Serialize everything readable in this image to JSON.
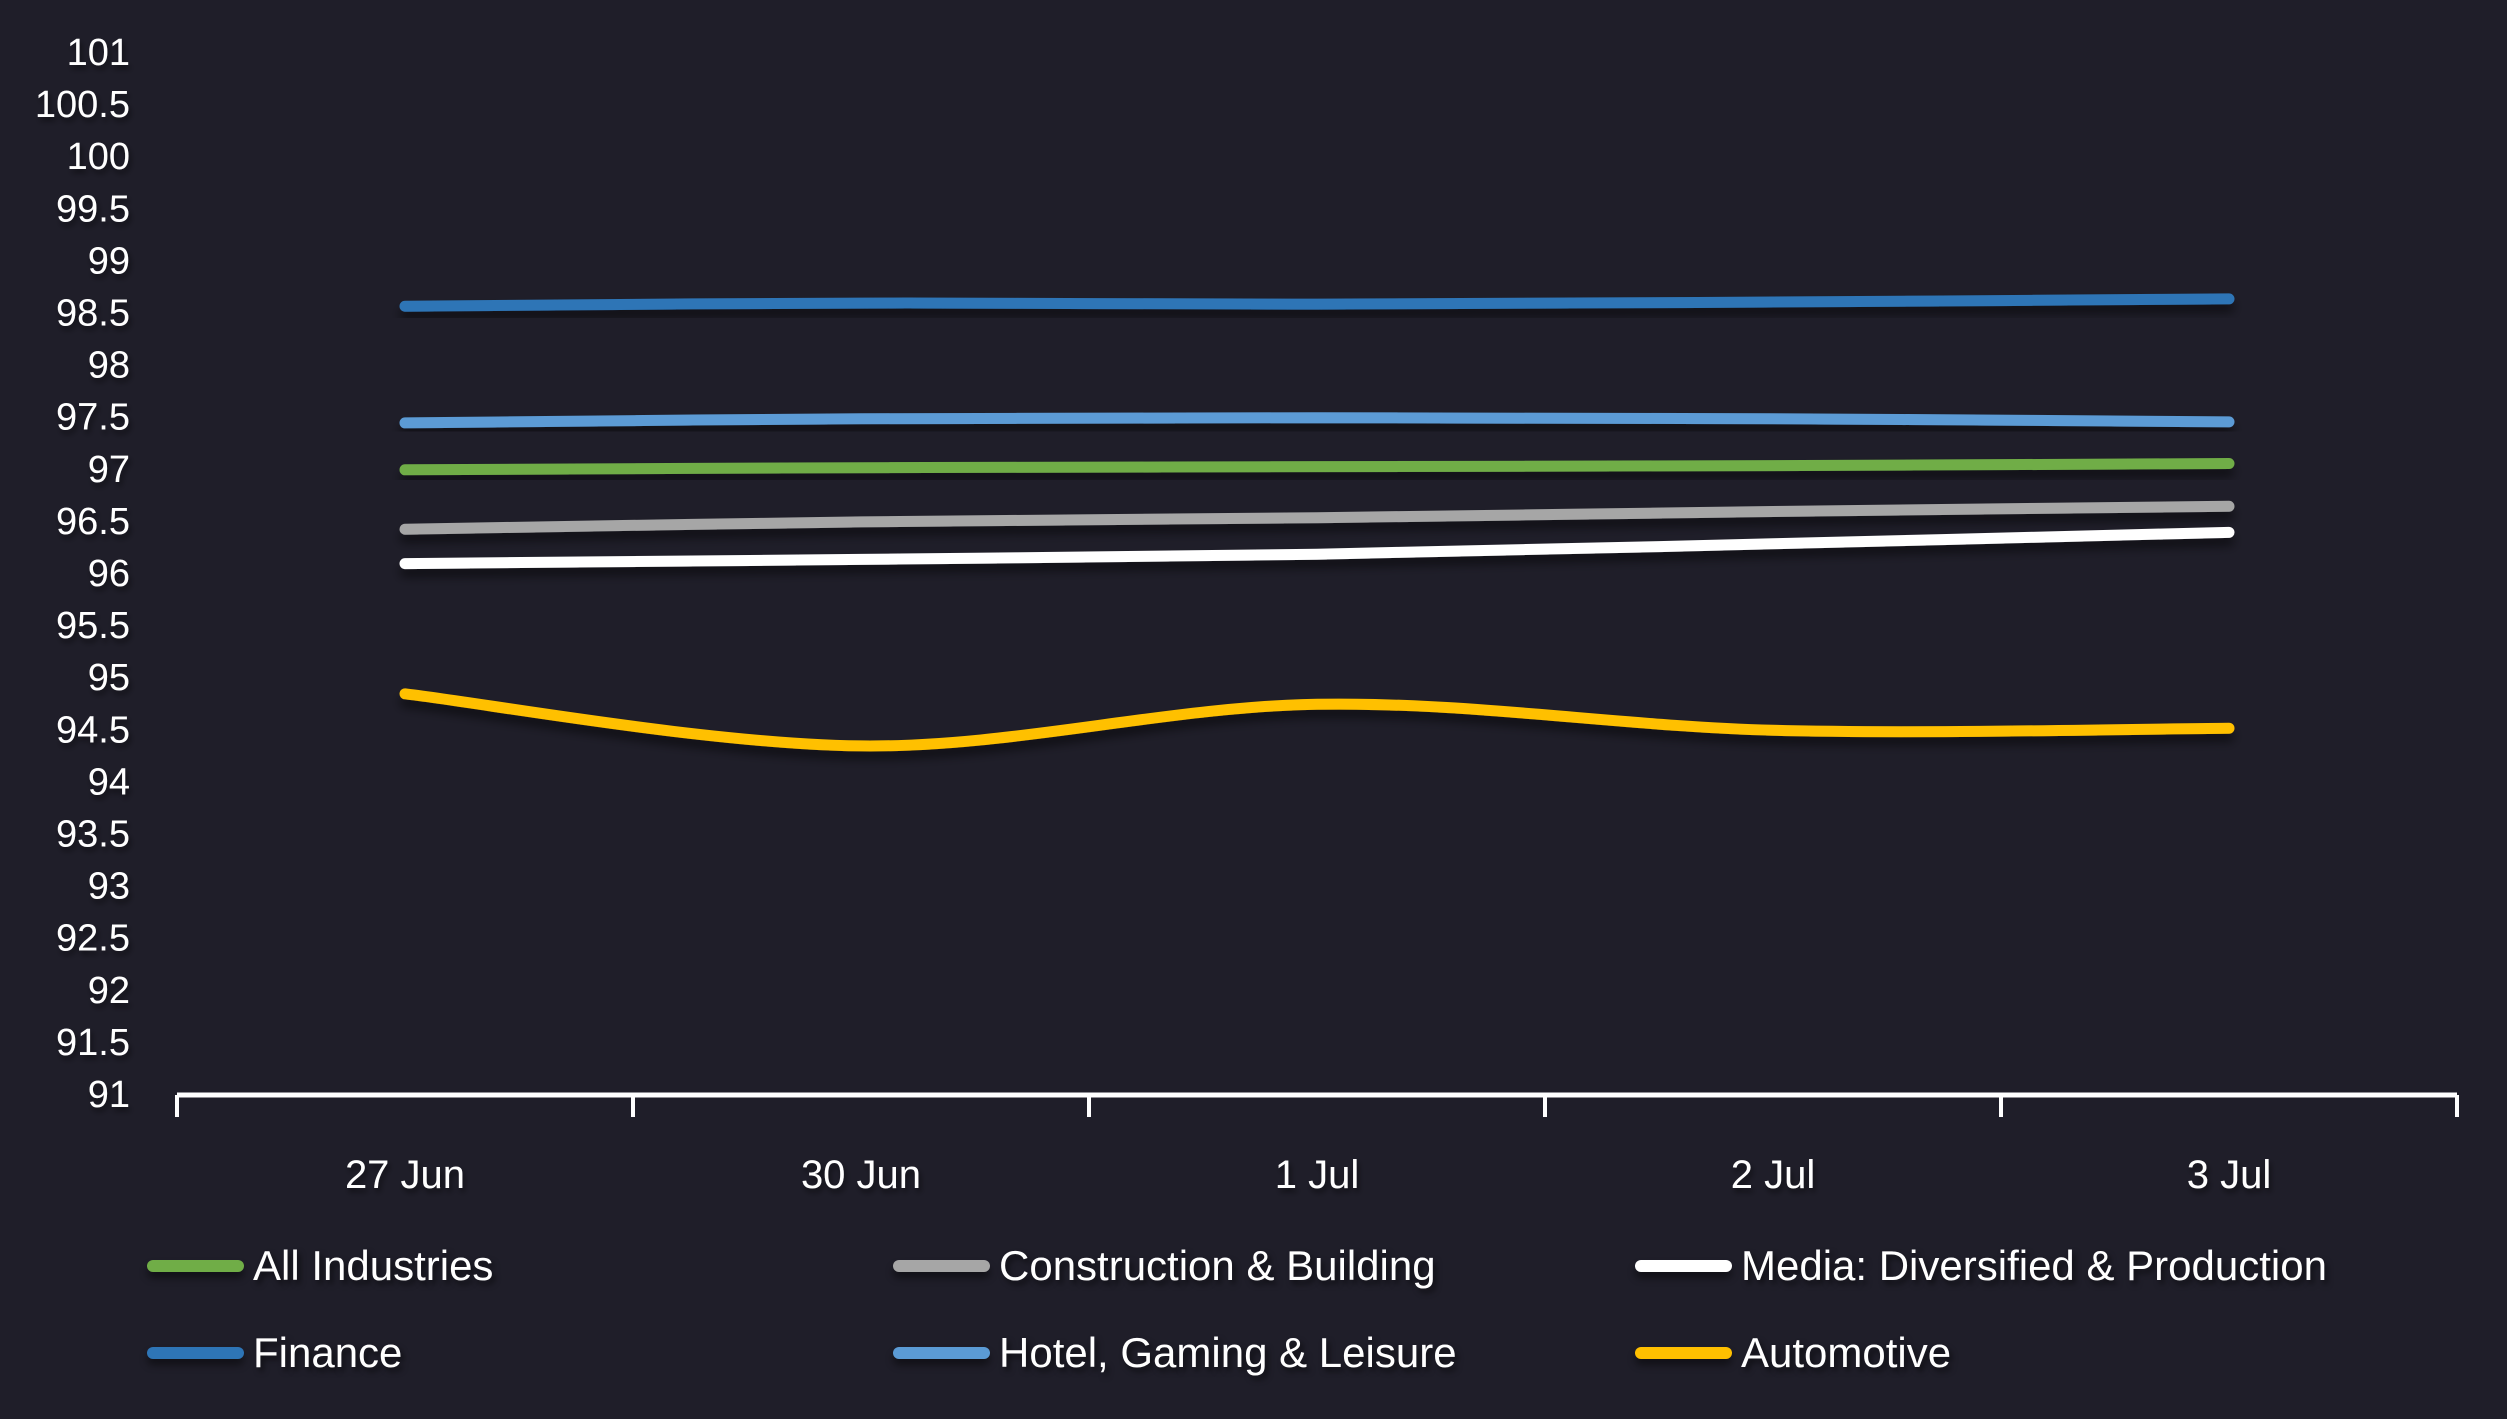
{
  "colors": {
    "background": "#1f1e29",
    "gridline": "#343340",
    "axis": "#ffffff",
    "label": "#ffffff"
  },
  "chart_data": {
    "type": "line",
    "title": "",
    "xlabel": "",
    "ylabel": "",
    "x_labels": [
      "27 Jun",
      "30 Jun",
      "1 Jul",
      "2 Jul",
      "3 Jul"
    ],
    "y_tick_labels": [
      "101",
      "100.5",
      "100",
      "99.5",
      "99",
      "98.5",
      "98",
      "97.5",
      "97",
      "96.5",
      "96",
      "95.5",
      "95",
      "94.5",
      "94",
      "93.5",
      "93",
      "92.5",
      "92",
      "91.5",
      "91"
    ],
    "ylim": [
      91,
      101
    ],
    "y_step": 0.5,
    "grid": true,
    "smooth": true,
    "legend_position": "bottom",
    "legend_rows": [
      [
        "All Industries",
        "Construction & Building",
        "Media: Diversified & Production"
      ],
      [
        "Finance",
        "Hotel, Gaming & Leisure",
        "Automotive"
      ]
    ],
    "series": [
      {
        "name": "All Industries",
        "color": "#70ad47",
        "values": [
          97.0,
          97.02,
          97.03,
          97.04,
          97.06
        ]
      },
      {
        "name": "Construction & Building",
        "color": "#a6a6a6",
        "values": [
          96.43,
          96.5,
          96.54,
          96.6,
          96.65
        ]
      },
      {
        "name": "Media: Diversified & Production",
        "color": "#ffffff",
        "values": [
          96.1,
          96.14,
          96.19,
          96.29,
          96.4
        ]
      },
      {
        "name": "Finance",
        "color": "#2e75b6",
        "values": [
          98.57,
          98.6,
          98.59,
          98.61,
          98.64
        ]
      },
      {
        "name": "Hotel, Gaming & Leisure",
        "color": "#5b9bd5",
        "values": [
          97.45,
          97.49,
          97.5,
          97.49,
          97.46
        ]
      },
      {
        "name": "Automotive",
        "color": "#ffc000",
        "values": [
          94.85,
          94.35,
          94.75,
          94.5,
          94.52
        ]
      }
    ]
  }
}
